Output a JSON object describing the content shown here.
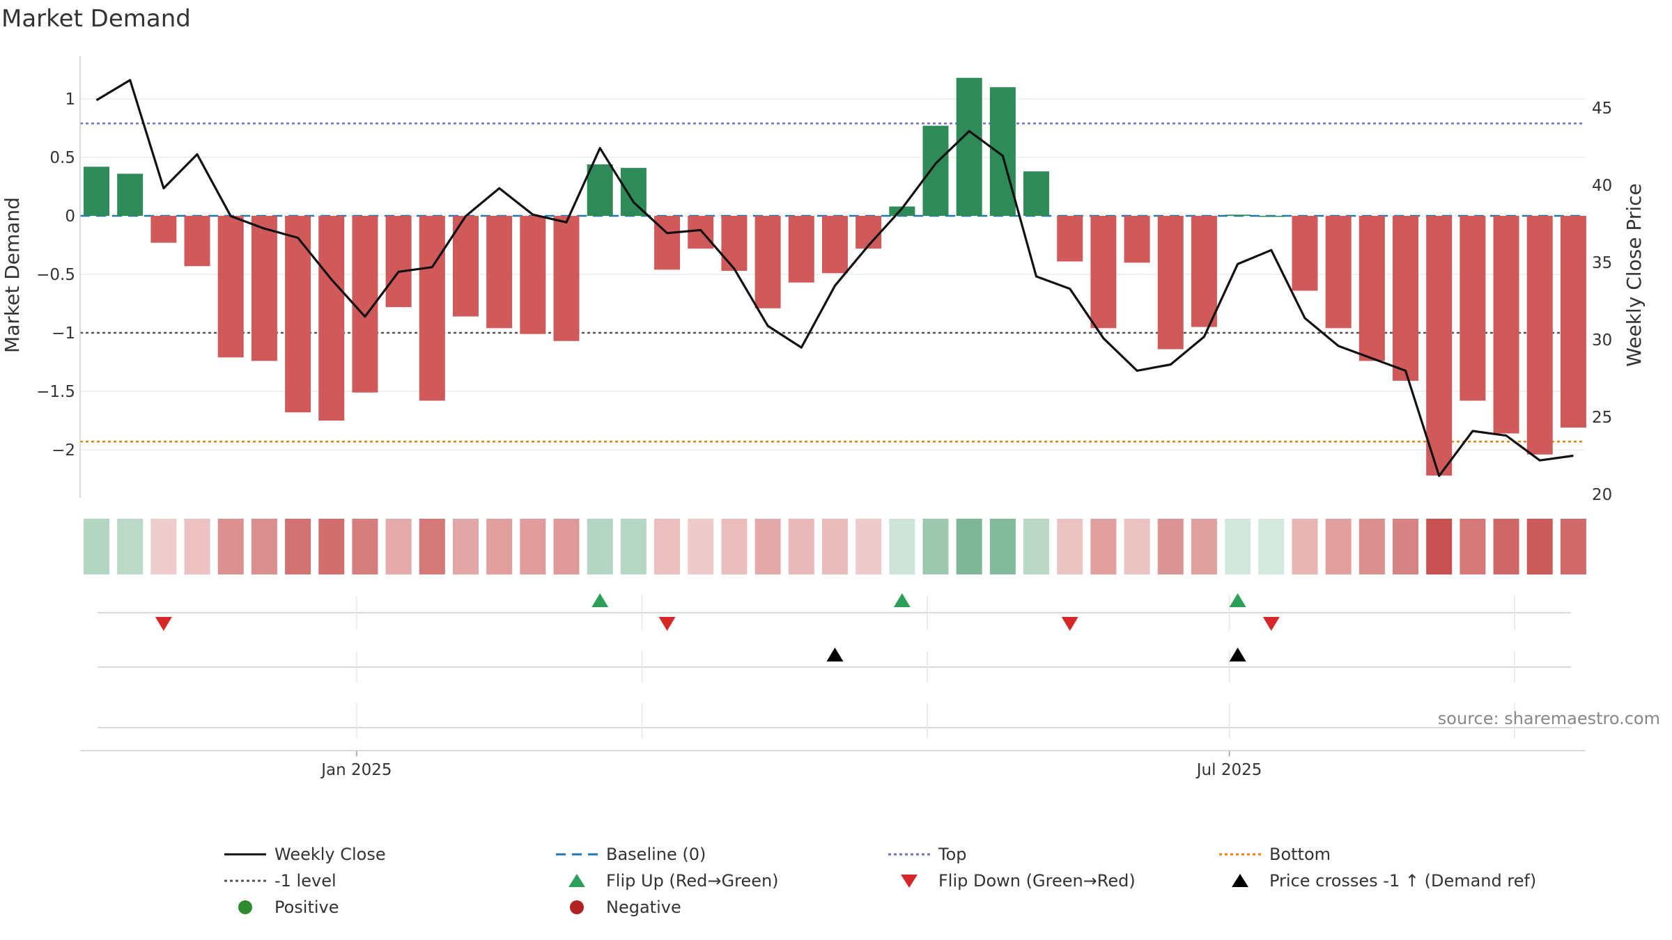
{
  "chart_data": {
    "type": "bar",
    "title": "Market Demand",
    "ylabel_left": "Market Demand",
    "ylabel_right": "Weekly Close Price",
    "ylim_left": [
      -2.4,
      1.35
    ],
    "ylim_right": [
      20,
      47.5
    ],
    "yticks_left": [
      1,
      0.5,
      0,
      -0.5,
      -1,
      -1.5,
      -2
    ],
    "ytick_labels_left": [
      "1",
      "0.5",
      "0",
      "−0.5",
      "−1",
      "−1.5",
      "−2"
    ],
    "yticks_right": [
      45,
      40,
      35,
      30,
      25,
      20
    ],
    "ytick_labels_right": [
      "45",
      "40",
      "35",
      "30",
      "25",
      "20"
    ],
    "x_tick_labels": [
      "Jan 2025",
      "Jul 2025"
    ],
    "x_tick_positions": [
      7.75,
      33.75
    ],
    "weeks": 45,
    "demand": [
      0.42,
      0.36,
      -0.23,
      -0.43,
      -1.21,
      -1.24,
      -1.68,
      -1.75,
      -1.51,
      -0.78,
      -1.58,
      -0.86,
      -0.96,
      -1.01,
      -1.07,
      0.44,
      0.41,
      -0.46,
      -0.28,
      -0.47,
      -0.79,
      -0.57,
      -0.49,
      -0.28,
      0.08,
      0.77,
      1.18,
      1.1,
      0.38,
      -0.39,
      -0.96,
      -0.4,
      -1.14,
      -0.95,
      0.01,
      0.0,
      -0.64,
      -0.96,
      -1.24,
      -1.41,
      -2.22,
      -1.58,
      -1.86,
      -2.04,
      -1.81
    ],
    "close": [
      45.5,
      46.8,
      39.8,
      42.0,
      38.0,
      37.2,
      36.6,
      33.9,
      31.5,
      34.4,
      34.7,
      38.0,
      39.8,
      38.1,
      37.6,
      42.4,
      38.9,
      36.9,
      37.1,
      34.6,
      30.9,
      29.5,
      33.5,
      36.1,
      38.5,
      41.4,
      43.5,
      41.9,
      34.1,
      33.3,
      30.1,
      28.0,
      28.4,
      30.2,
      34.9,
      35.8,
      31.4,
      29.6,
      28.8,
      28.0,
      21.2,
      24.1,
      23.8,
      22.2,
      22.5
    ],
    "top_level": 0.79,
    "bottom_level": -1.93,
    "minus_one_level": -1,
    "baseline_level": 0,
    "flip_up_weeks": [
      15,
      24,
      34
    ],
    "flip_down_weeks": [
      2,
      17,
      29,
      35
    ],
    "price_cross_weeks": [
      22,
      34
    ],
    "legend": [
      {
        "label": "Weekly Close",
        "type": "line",
        "color": "#111111",
        "dash": ""
      },
      {
        "label": "Baseline (0)",
        "type": "line",
        "color": "#1f77b4",
        "dash": "14,9"
      },
      {
        "label": "Top",
        "type": "line",
        "color": "#6f6fc9",
        "dash": "4,4"
      },
      {
        "label": "Bottom",
        "type": "line",
        "color": "#e8820e",
        "dash": "4,4"
      },
      {
        "label": "-1 level",
        "type": "line",
        "color": "#555555",
        "dash": "4,4"
      },
      {
        "label": "Flip Up (Red→Green)",
        "type": "tri-up",
        "color": "#2ca05a"
      },
      {
        "label": "Flip Down (Green→Red)",
        "type": "tri-down",
        "color": "#d62728"
      },
      {
        "label": "Price crosses -1 ↑ (Demand ref)",
        "type": "tri-up",
        "color": "#000000"
      },
      {
        "label": "Positive",
        "type": "dot",
        "color": "#2e8b2e"
      },
      {
        "label": "Negative",
        "type": "dot",
        "color": "#b22222"
      }
    ],
    "colors": {
      "positive": "#2e8b57",
      "negative": "#d05a5a",
      "close_line": "#111111",
      "baseline": "#1f77b4",
      "top": "#6f6fc9",
      "bottom": "#e8820e",
      "minus_one": "#555555"
    },
    "source": "source: sharemaestro.com"
  }
}
